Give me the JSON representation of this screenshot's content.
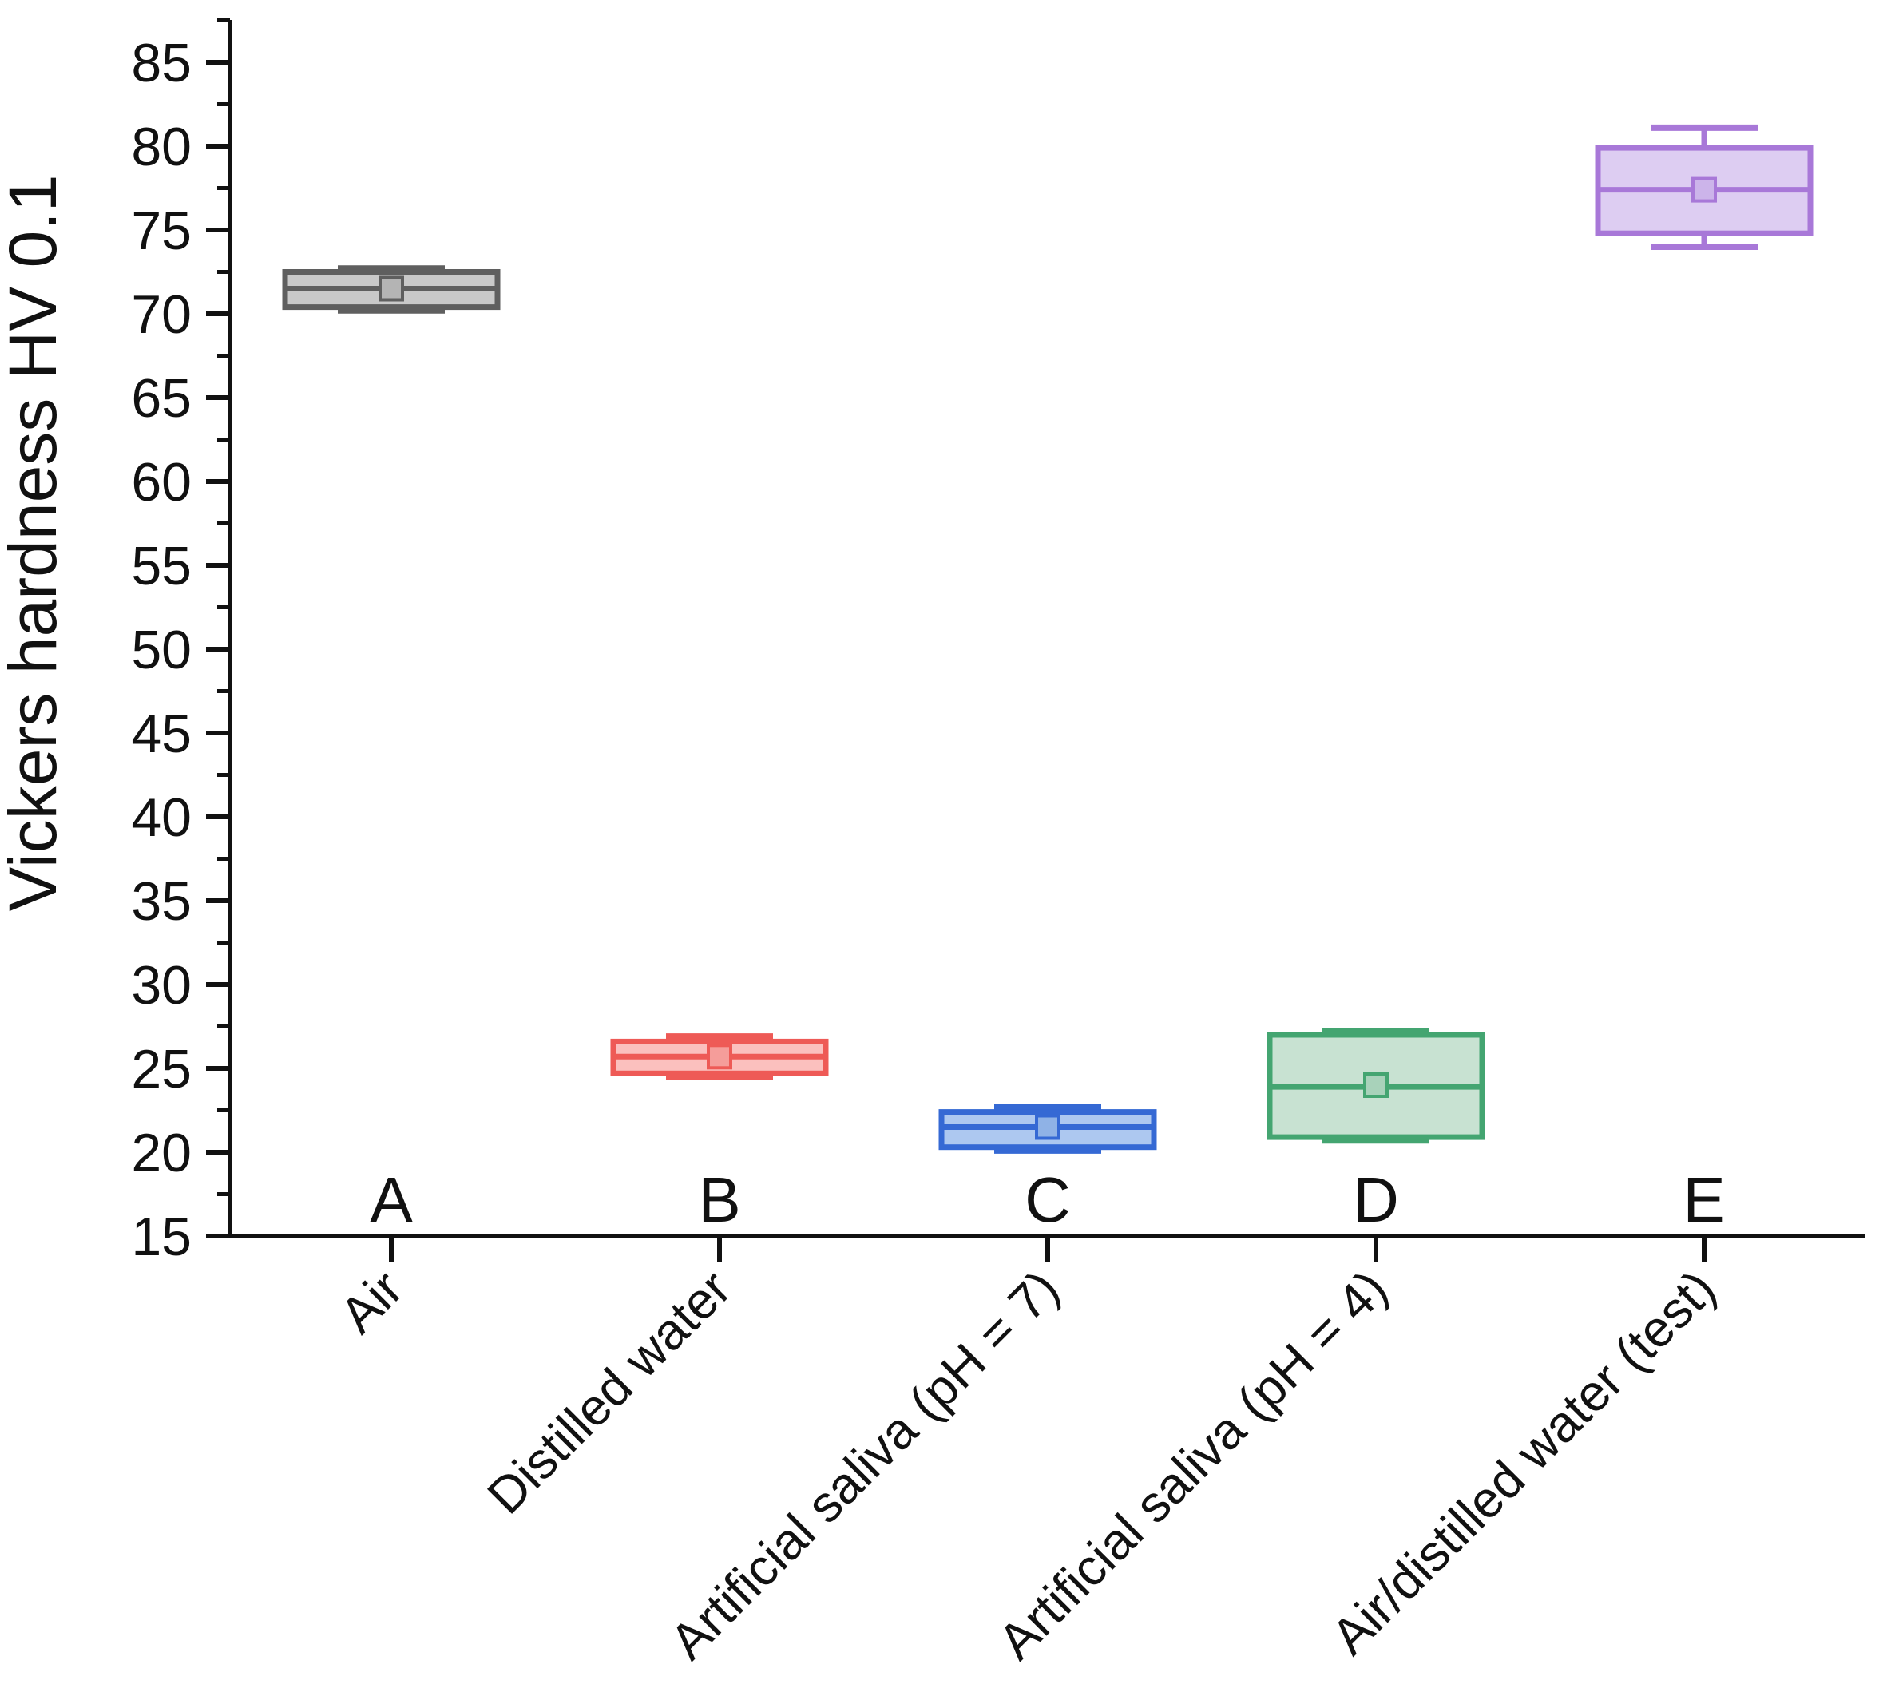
{
  "chart_data": {
    "type": "box",
    "title": "",
    "xlabel": "",
    "ylabel": "Vickers hardness HV 0.1",
    "ylim": [
      15,
      87.5
    ],
    "y_major_ticks": [
      15,
      20,
      25,
      30,
      35,
      40,
      45,
      50,
      55,
      60,
      65,
      70,
      75,
      80,
      85
    ],
    "y_minor_step": 2.5,
    "grid": "off",
    "legend": "none",
    "axis_color": "#111111",
    "categories": [
      {
        "letter": "A",
        "label": "Air",
        "border_color": "#5f5f5f",
        "fill_color": "#c9c9c9",
        "mean_fill": "#b4b4b4",
        "min": 70.2,
        "q1": 70.4,
        "median": 71.5,
        "mean": 71.5,
        "q3": 72.5,
        "max": 72.7
      },
      {
        "letter": "B",
        "label": "Distilled water",
        "border_color": "#ee5a56",
        "fill_color": "#fbc0be",
        "mean_fill": "#f59d9a",
        "min": 24.5,
        "q1": 24.7,
        "median": 25.7,
        "mean": 25.7,
        "q3": 26.6,
        "max": 26.9
      },
      {
        "letter": "C",
        "label": "Artificial saliva (pH = 7)",
        "border_color": "#3569d4",
        "fill_color": "#adc8f0",
        "mean_fill": "#8fb2e6",
        "min": 20.1,
        "q1": 20.3,
        "median": 21.5,
        "mean": 21.5,
        "q3": 22.4,
        "max": 22.7
      },
      {
        "letter": "D",
        "label": "Artificial saliva (pH = 4)",
        "border_color": "#44a571",
        "fill_color": "#c8e2d2",
        "mean_fill": "#a8d2ba",
        "min": 20.7,
        "q1": 20.9,
        "median": 23.9,
        "mean": 24.0,
        "q3": 27.0,
        "max": 27.2
      },
      {
        "letter": "E",
        "label": "Air/distilled water (test)",
        "border_color": "#a878d8",
        "fill_color": "#ddcdf2",
        "mean_fill": "#ccb4ea",
        "min": 74.0,
        "q1": 74.8,
        "median": 77.4,
        "mean": 77.4,
        "q3": 79.9,
        "max": 81.1
      }
    ]
  }
}
